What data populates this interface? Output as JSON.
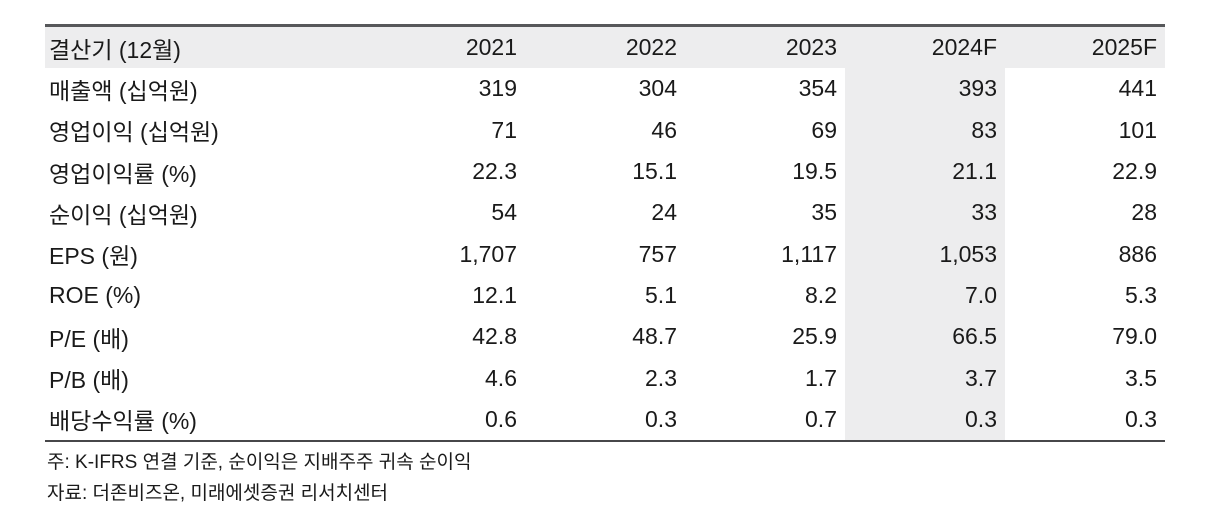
{
  "table": {
    "header": {
      "period_label": "결산기 (12월)",
      "years": [
        "2021",
        "2022",
        "2023",
        "2024F",
        "2025F"
      ]
    },
    "rows": [
      {
        "label": "매출액 (십억원)",
        "values": [
          "319",
          "304",
          "354",
          "393",
          "441"
        ]
      },
      {
        "label": "영업이익 (십억원)",
        "values": [
          "71",
          "46",
          "69",
          "83",
          "101"
        ]
      },
      {
        "label": "영업이익률 (%)",
        "values": [
          "22.3",
          "15.1",
          "19.5",
          "21.1",
          "22.9"
        ]
      },
      {
        "label": "순이익 (십억원)",
        "values": [
          "54",
          "24",
          "35",
          "33",
          "28"
        ]
      },
      {
        "label": "EPS (원)",
        "values": [
          "1,707",
          "757",
          "1,117",
          "1,053",
          "886"
        ]
      },
      {
        "label": "ROE (%)",
        "values": [
          "12.1",
          "5.1",
          "8.2",
          "7.0",
          "5.3"
        ]
      },
      {
        "label": "P/E (배)",
        "values": [
          "42.8",
          "48.7",
          "25.9",
          "66.5",
          "79.0"
        ]
      },
      {
        "label": "P/B (배)",
        "values": [
          "4.6",
          "2.3",
          "1.7",
          "3.7",
          "3.5"
        ]
      },
      {
        "label": "배당수익률 (%)",
        "values": [
          "0.6",
          "0.3",
          "0.7",
          "0.3",
          "0.3"
        ]
      }
    ],
    "highlighted_column": "2024F",
    "colors": {
      "header_bg": "#ededee",
      "highlight_bg": "#ededee",
      "top_rule": "#57585a",
      "bottom_rule": "#47474a",
      "text": "#1a1a1a"
    }
  },
  "notes": [
    "주: K-IFRS 연결 기준, 순이익은 지배주주 귀속 순이익",
    "자료: 더존비즈온, 미래에셋증권 리서치센터"
  ]
}
